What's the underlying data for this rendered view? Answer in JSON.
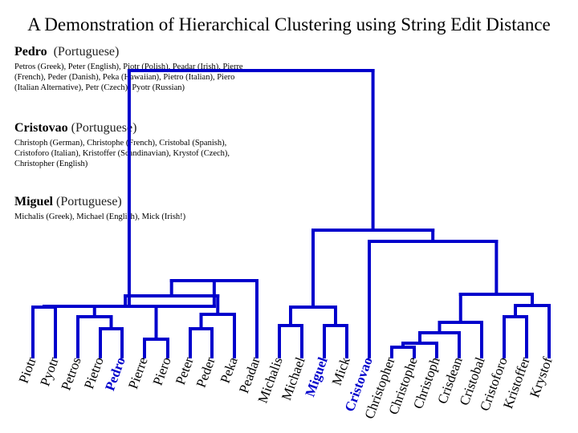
{
  "title": "A Demonstration of Hierarchical Clustering using String Edit Distance",
  "groups": [
    {
      "name": "Pedro",
      "language": "(Portuguese)",
      "variants": "Petros (Greek), Peter (English), Piotr (Polish), Peadar (Irish), Pierre (French), Peder (Danish), Peka (Hawaiian), Pietro (Italian), Piero (Italian Alternative), Petr (Czech), Pyotr (Russian)"
    },
    {
      "name": "Cristovao",
      "language": "(Portuguese)",
      "variants": "Christoph (German), Christophe (French), Cristobal (Spanish), Cristoforo (Italian), Kristoffer (Scandinavian), Krystof (Czech), Christopher (English)"
    },
    {
      "name": "Miguel",
      "language": "(Portuguese)",
      "variants": "Michalis (Greek), Michael (English), Mick (Irish!)"
    }
  ],
  "leaves": [
    "Piotr",
    "Pyotr",
    "Petros",
    "Pietro",
    "Pedro",
    "Pierre",
    "Piero",
    "Peter",
    "Peder",
    "Peka",
    "Peadar",
    "Michalis",
    "Michael",
    "Miguel",
    "Mick",
    "Cristovao",
    "Christopher",
    "Christophe",
    "Christoph",
    "Crisdean",
    "Cristobal",
    "Cristoforo",
    "Kristoffer",
    "Krystof"
  ],
  "highlighted_leaves": [
    "Pedro",
    "Miguel",
    "Cristovao"
  ],
  "colors": {
    "tree": "#0000cc",
    "highlight": "#0000cc",
    "text": "#000000"
  }
}
